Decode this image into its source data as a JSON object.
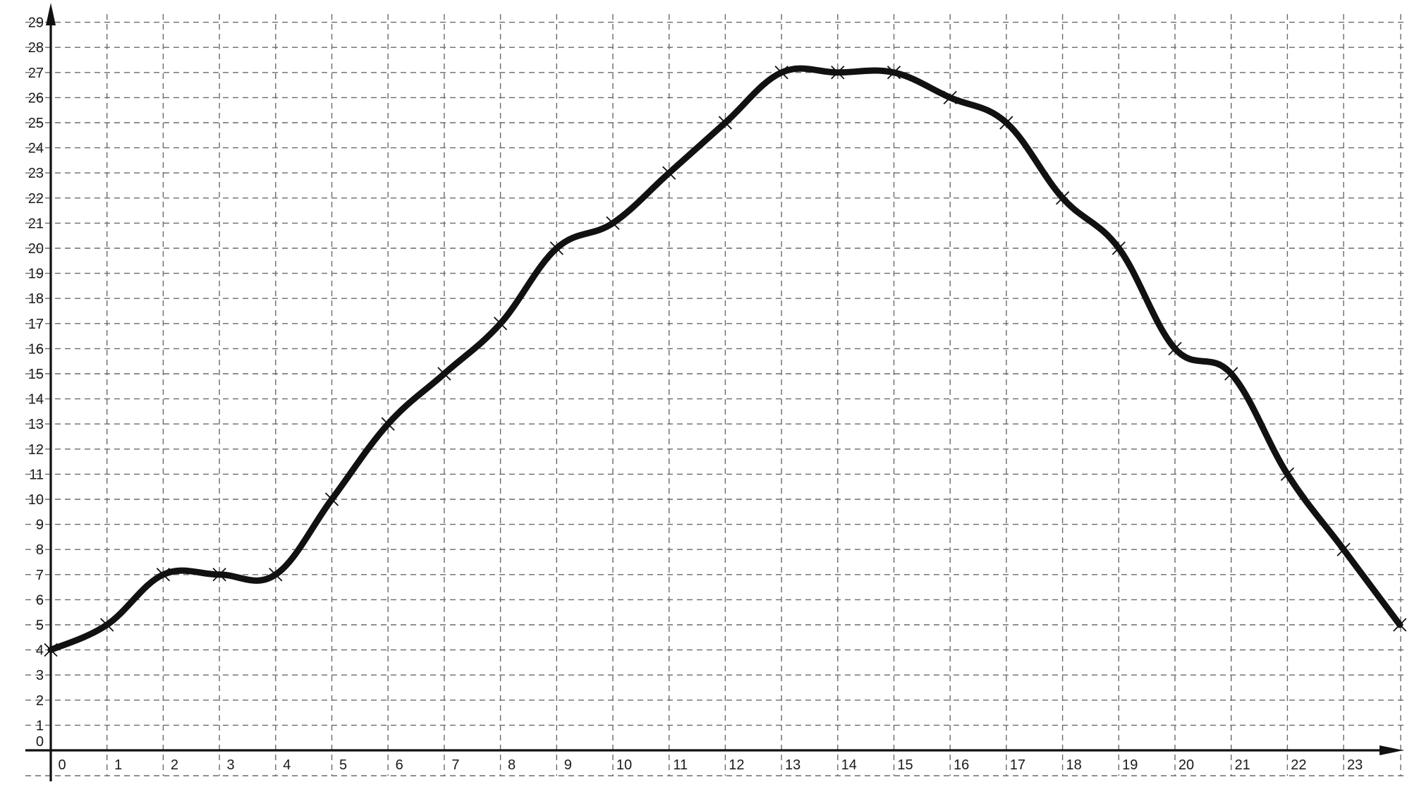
{
  "chart_data": {
    "type": "line",
    "title": "",
    "xlabel": "",
    "ylabel": "",
    "xlim": [
      0,
      24
    ],
    "ylim": [
      0,
      29
    ],
    "grid": true,
    "x_ticks": [
      "0",
      "1",
      "2",
      "3",
      "4",
      "5",
      "6",
      "7",
      "8",
      "9",
      "10",
      "11",
      "12",
      "13",
      "14",
      "15",
      "16",
      "17",
      "18",
      "19",
      "20",
      "21",
      "22",
      "23"
    ],
    "y_ticks": [
      "0",
      "1",
      "2",
      "3",
      "4",
      "5",
      "6",
      "7",
      "8",
      "9",
      "10",
      "11",
      "12",
      "13",
      "14",
      "15",
      "16",
      "17",
      "18",
      "19",
      "20",
      "21",
      "22",
      "23",
      "24",
      "25",
      "26",
      "27",
      "28",
      "29"
    ],
    "series": [
      {
        "x": [
          0,
          1,
          2,
          3,
          4,
          5,
          6,
          7,
          8,
          9,
          10,
          11,
          12,
          13,
          14,
          15,
          16,
          17,
          18,
          19,
          20,
          21,
          22,
          23,
          24
        ],
        "y": [
          4,
          5,
          7,
          7,
          7,
          10,
          13,
          15,
          17,
          20,
          21,
          23,
          25,
          27,
          27,
          27,
          26,
          25,
          22,
          20,
          16,
          15,
          11,
          8,
          5
        ],
        "color": "#111111"
      }
    ],
    "colors": {
      "line": "#111111",
      "grid": "#6a6a6a",
      "axis": "#111111",
      "background": "#ffffff"
    }
  }
}
